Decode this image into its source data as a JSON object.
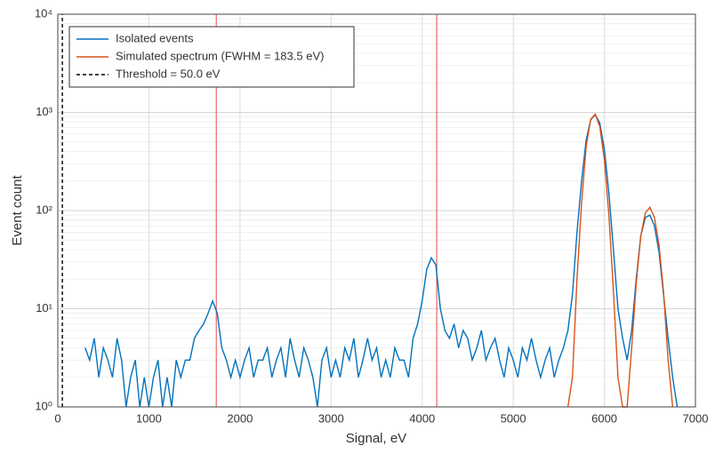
{
  "chart_data": {
    "type": "line",
    "x_label": "Signal, eV",
    "y_label": "Event count",
    "xlim": [
      0,
      7000
    ],
    "xticks": [
      0,
      1000,
      2000,
      3000,
      4000,
      5000,
      6000,
      7000
    ],
    "ylim": [
      1,
      10000
    ],
    "yticks": [
      {
        "value": 1,
        "label": "10⁰"
      },
      {
        "value": 10,
        "label": "10¹"
      },
      {
        "value": 100,
        "label": "10²"
      },
      {
        "value": 1000,
        "label": "10³"
      },
      {
        "value": 10000,
        "label": "10⁴"
      }
    ],
    "y_scale": "log",
    "grid": true,
    "legend": "top-left",
    "vlines": [
      1740,
      4160
    ],
    "vline_color": "#e8656a",
    "series": [
      {
        "name": "Isolated events",
        "color": "#0072bd",
        "dash": false,
        "x": [
          300,
          350,
          400,
          450,
          500,
          550,
          600,
          650,
          700,
          750,
          800,
          850,
          900,
          950,
          1000,
          1050,
          1100,
          1150,
          1200,
          1250,
          1300,
          1350,
          1400,
          1450,
          1500,
          1550,
          1600,
          1650,
          1700,
          1750,
          1800,
          1850,
          1900,
          1950,
          2000,
          2050,
          2100,
          2150,
          2200,
          2250,
          2300,
          2350,
          2400,
          2450,
          2500,
          2550,
          2600,
          2650,
          2700,
          2750,
          2800,
          2850,
          2900,
          2950,
          3000,
          3050,
          3100,
          3150,
          3200,
          3250,
          3300,
          3350,
          3400,
          3450,
          3500,
          3550,
          3600,
          3650,
          3700,
          3750,
          3800,
          3850,
          3900,
          3950,
          4000,
          4050,
          4100,
          4150,
          4200,
          4250,
          4300,
          4350,
          4400,
          4450,
          4500,
          4550,
          4600,
          4650,
          4700,
          4750,
          4800,
          4850,
          4900,
          4950,
          5000,
          5050,
          5100,
          5150,
          5200,
          5250,
          5300,
          5350,
          5400,
          5450,
          5500,
          5550,
          5600,
          5650,
          5700,
          5750,
          5800,
          5850,
          5900,
          5950,
          6000,
          6050,
          6100,
          6150,
          6200,
          6250,
          6300,
          6350,
          6400,
          6450,
          6500,
          6550,
          6600,
          6650,
          6700,
          6750,
          6800
        ],
        "values": [
          4,
          3,
          5,
          2,
          4,
          3,
          2,
          5,
          3,
          1,
          2,
          3,
          1,
          2,
          1,
          2,
          3,
          1,
          2,
          1,
          3,
          2,
          3,
          3,
          5,
          6,
          7,
          9,
          12,
          9,
          4,
          3,
          2,
          3,
          2,
          3,
          4,
          2,
          3,
          3,
          4,
          2,
          3,
          4,
          2,
          5,
          3,
          2,
          4,
          3,
          2,
          1,
          3,
          4,
          2,
          3,
          2,
          4,
          3,
          5,
          2,
          3,
          5,
          3,
          4,
          2,
          3,
          2,
          4,
          3,
          3,
          2,
          5,
          7,
          12,
          25,
          33,
          28,
          10,
          6,
          5,
          7,
          4,
          6,
          5,
          3,
          4,
          6,
          3,
          4,
          5,
          3,
          2,
          4,
          3,
          2,
          4,
          3,
          5,
          3,
          2,
          3,
          4,
          2,
          3,
          4,
          6,
          14,
          60,
          200,
          520,
          840,
          950,
          780,
          420,
          150,
          40,
          10,
          5,
          3,
          6,
          20,
          55,
          85,
          90,
          70,
          38,
          14,
          5,
          2,
          1
        ]
      },
      {
        "name": "Simulated spectrum (FWHM = 183.5 eV)",
        "color": "#d95319",
        "dash": false,
        "x": [
          5600,
          5650,
          5700,
          5750,
          5800,
          5850,
          5900,
          5950,
          6000,
          6050,
          6100,
          6150,
          6200,
          6250,
          6300,
          6350,
          6400,
          6450,
          6500,
          6550,
          6600,
          6650,
          6700,
          6750
        ],
        "values": [
          1,
          2,
          20,
          120,
          450,
          850,
          960,
          720,
          330,
          90,
          15,
          2,
          1,
          1,
          4,
          18,
          55,
          95,
          108,
          85,
          45,
          15,
          3,
          1
        ]
      },
      {
        "name": "Threshold = 50.0 eV",
        "color": "#000000",
        "dash": true,
        "x": [
          50,
          50
        ],
        "values": [
          1,
          10000
        ]
      }
    ]
  }
}
